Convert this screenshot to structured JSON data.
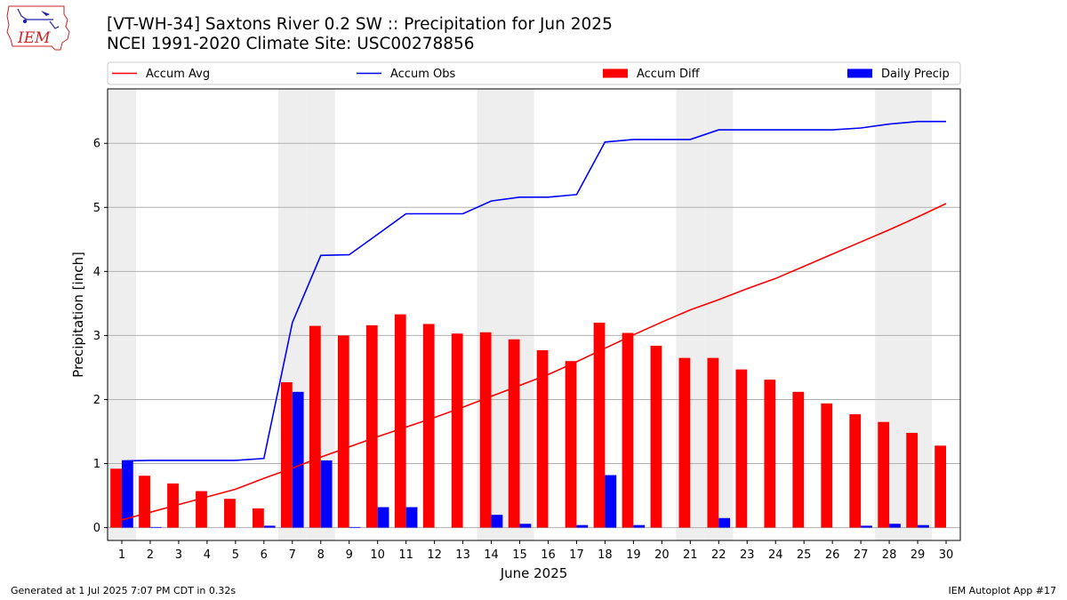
{
  "header": {
    "title_line1": "[VT-WH-34] Saxtons River 0.2 SW :: Precipitation for Jun 2025",
    "title_line2": "NCEI 1991-2020 Climate Site: USC00278856"
  },
  "logo": {
    "text": "IEM"
  },
  "footer": {
    "left": "Generated at 1 Jul 2025 7:07 PM CDT in 0.32s",
    "right": "IEM Autoplot App #17"
  },
  "colors": {
    "avg": "#ff0000",
    "obs": "#0000ff",
    "diff": "#ff0000",
    "daily": "#0000ff",
    "weekend": "#eeeeee",
    "grid": "#b0b0b0"
  },
  "chart_data": {
    "type": "bar",
    "xlabel": "June 2025",
    "ylabel": "Precipitation [inch]",
    "x": [
      1,
      2,
      3,
      4,
      5,
      6,
      7,
      8,
      9,
      10,
      11,
      12,
      13,
      14,
      15,
      16,
      17,
      18,
      19,
      20,
      21,
      22,
      23,
      24,
      25,
      26,
      27,
      28,
      29,
      30
    ],
    "ylim": [
      -0.2,
      6.85
    ],
    "yticks": [
      0,
      1,
      2,
      3,
      4,
      5,
      6
    ],
    "grid": "horizontal",
    "legend_position": "top",
    "shaded_days": [
      1,
      7,
      8,
      14,
      15,
      21,
      22,
      28,
      29
    ],
    "series": [
      {
        "name": "Accum Avg",
        "kind": "line",
        "values": [
          0.12,
          0.24,
          0.36,
          0.48,
          0.6,
          0.77,
          0.93,
          1.1,
          1.26,
          1.42,
          1.57,
          1.72,
          1.88,
          2.05,
          2.22,
          2.39,
          2.59,
          2.8,
          3.01,
          3.21,
          3.4,
          3.56,
          3.73,
          3.89,
          4.08,
          4.27,
          4.46,
          4.65,
          4.85,
          5.06
        ]
      },
      {
        "name": "Accum Obs",
        "kind": "line",
        "values": [
          1.04,
          1.05,
          1.05,
          1.05,
          1.05,
          1.08,
          3.2,
          4.25,
          4.26,
          4.58,
          4.9,
          4.9,
          4.9,
          5.1,
          5.16,
          5.16,
          5.2,
          6.02,
          6.06,
          6.06,
          6.06,
          6.21,
          6.21,
          6.21,
          6.21,
          6.21,
          6.24,
          6.3,
          6.34,
          6.34
        ]
      },
      {
        "name": "Accum Diff",
        "kind": "bar",
        "values": [
          0.92,
          0.81,
          0.69,
          0.57,
          0.45,
          0.3,
          2.27,
          3.15,
          3.0,
          3.16,
          3.33,
          3.18,
          3.03,
          3.05,
          2.94,
          2.77,
          2.6,
          3.2,
          3.04,
          2.84,
          2.65,
          2.65,
          2.47,
          2.31,
          2.12,
          1.94,
          1.77,
          1.65,
          1.48,
          1.28
        ]
      },
      {
        "name": "Daily Precip",
        "kind": "bar",
        "values": [
          1.04,
          0.01,
          0.0,
          0.0,
          0.0,
          0.03,
          2.12,
          1.05,
          0.01,
          0.32,
          0.32,
          0.0,
          0.0,
          0.2,
          0.06,
          0.0,
          0.04,
          0.82,
          0.04,
          0.0,
          0.0,
          0.15,
          0.0,
          0.0,
          0.0,
          0.0,
          0.03,
          0.06,
          0.04,
          0.0
        ]
      }
    ]
  }
}
